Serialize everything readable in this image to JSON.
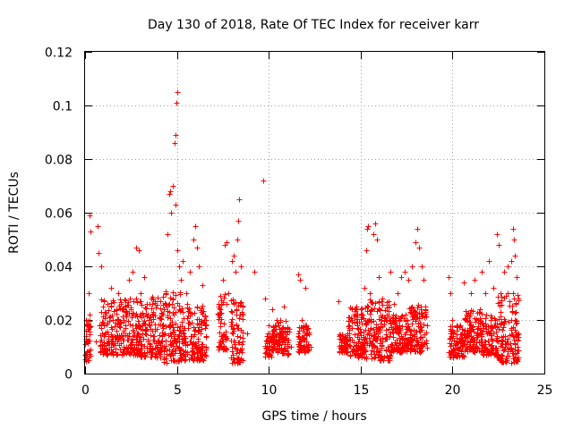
{
  "chart_data": {
    "type": "scatter",
    "title": "Day 130 of 2018, Rate Of TEC Index for receiver karr",
    "xlabel": "GPS time / hours",
    "ylabel": "ROTI / TECUs",
    "xlim": [
      0,
      25
    ],
    "ylim": [
      0,
      0.12
    ],
    "x_ticks": [
      0,
      5,
      10,
      15,
      20,
      25
    ],
    "x_tick_labels": [
      "0",
      "5",
      "10",
      "15",
      "20",
      "25"
    ],
    "y_ticks": [
      0,
      0.02,
      0.04,
      0.06,
      0.08,
      0.1,
      0.12
    ],
    "y_tick_labels": [
      "0",
      "0.02",
      "0.04",
      "0.06",
      "0.08",
      "0.1",
      "0.12"
    ],
    "grid": true,
    "marker": "+",
    "color": "#ff0000",
    "series": [
      {
        "name": "ROTI",
        "points": [
          [
            0.1,
            0.018
          ],
          [
            0.15,
            0.012
          ],
          [
            0.2,
            0.03
          ],
          [
            0.25,
            0.059
          ],
          [
            0.3,
            0.053
          ],
          [
            0.12,
            0.008
          ],
          [
            0.22,
            0.022
          ],
          [
            0.7,
            0.055
          ],
          [
            0.75,
            0.045
          ],
          [
            0.9,
            0.04
          ],
          [
            0.6,
            0.012
          ],
          [
            0.8,
            0.018
          ],
          [
            1.0,
            0.014
          ],
          [
            1.2,
            0.026
          ],
          [
            1.4,
            0.032
          ],
          [
            1.5,
            0.02
          ],
          [
            1.7,
            0.016
          ],
          [
            1.8,
            0.03
          ],
          [
            2.0,
            0.024
          ],
          [
            2.2,
            0.018
          ],
          [
            2.4,
            0.035
          ],
          [
            2.6,
            0.038
          ],
          [
            2.8,
            0.047
          ],
          [
            2.9,
            0.046
          ],
          [
            3.0,
            0.03
          ],
          [
            3.2,
            0.036
          ],
          [
            3.4,
            0.022
          ],
          [
            3.6,
            0.028
          ],
          [
            3.8,
            0.016
          ],
          [
            4.0,
            0.012
          ],
          [
            4.2,
            0.014
          ],
          [
            4.4,
            0.03
          ],
          [
            4.5,
            0.052
          ],
          [
            4.6,
            0.067
          ],
          [
            4.65,
            0.068
          ],
          [
            4.7,
            0.06
          ],
          [
            4.8,
            0.07
          ],
          [
            4.85,
            0.086
          ],
          [
            4.9,
            0.089
          ],
          [
            4.95,
            0.101
          ],
          [
            5.0,
            0.105
          ],
          [
            4.9,
            0.063
          ],
          [
            5.0,
            0.046
          ],
          [
            5.1,
            0.04
          ],
          [
            5.2,
            0.035
          ],
          [
            5.3,
            0.042
          ],
          [
            5.5,
            0.03
          ],
          [
            5.7,
            0.038
          ],
          [
            5.9,
            0.05
          ],
          [
            6.0,
            0.055
          ],
          [
            6.1,
            0.047
          ],
          [
            6.2,
            0.04
          ],
          [
            6.4,
            0.033
          ],
          [
            6.5,
            0.02
          ],
          [
            6.6,
            0.014
          ],
          [
            7.3,
            0.025
          ],
          [
            7.5,
            0.035
          ],
          [
            7.6,
            0.048
          ],
          [
            7.7,
            0.049
          ],
          [
            7.8,
            0.03
          ],
          [
            8.0,
            0.042
          ],
          [
            8.1,
            0.044
          ],
          [
            8.2,
            0.038
          ],
          [
            8.3,
            0.05
          ],
          [
            8.35,
            0.057
          ],
          [
            8.4,
            0.065
          ],
          [
            8.5,
            0.04
          ],
          [
            8.6,
            0.025
          ],
          [
            8.8,
            0.015
          ],
          [
            9.2,
            0.038
          ],
          [
            9.7,
            0.072
          ],
          [
            9.8,
            0.028
          ],
          [
            10.0,
            0.018
          ],
          [
            10.2,
            0.024
          ],
          [
            10.4,
            0.012
          ],
          [
            10.6,
            0.02
          ],
          [
            10.8,
            0.025
          ],
          [
            11.0,
            0.016
          ],
          [
            11.2,
            0.01
          ],
          [
            11.6,
            0.037
          ],
          [
            11.7,
            0.035
          ],
          [
            11.8,
            0.02
          ],
          [
            12.0,
            0.032
          ],
          [
            12.1,
            0.015
          ],
          [
            12.3,
            0.01
          ],
          [
            13.8,
            0.027
          ],
          [
            14.0,
            0.014
          ],
          [
            14.2,
            0.01
          ],
          [
            14.6,
            0.022
          ],
          [
            14.8,
            0.018
          ],
          [
            15.0,
            0.024
          ],
          [
            15.2,
            0.032
          ],
          [
            15.3,
            0.046
          ],
          [
            15.35,
            0.054
          ],
          [
            15.4,
            0.055
          ],
          [
            15.5,
            0.03
          ],
          [
            15.7,
            0.052
          ],
          [
            15.8,
            0.056
          ],
          [
            15.9,
            0.05
          ],
          [
            16.0,
            0.036
          ],
          [
            16.2,
            0.028
          ],
          [
            16.4,
            0.02
          ],
          [
            16.6,
            0.038
          ],
          [
            16.8,
            0.026
          ],
          [
            17.0,
            0.03
          ],
          [
            17.2,
            0.036
          ],
          [
            17.4,
            0.038
          ],
          [
            17.6,
            0.035
          ],
          [
            17.8,
            0.04
          ],
          [
            18.0,
            0.049
          ],
          [
            18.1,
            0.054
          ],
          [
            18.2,
            0.047
          ],
          [
            18.3,
            0.04
          ],
          [
            18.4,
            0.035
          ],
          [
            18.5,
            0.024
          ],
          [
            18.6,
            0.018
          ],
          [
            19.8,
            0.036
          ],
          [
            19.9,
            0.03
          ],
          [
            20.0,
            0.02
          ],
          [
            20.2,
            0.016
          ],
          [
            20.4,
            0.012
          ],
          [
            20.6,
            0.034
          ],
          [
            20.8,
            0.022
          ],
          [
            21.0,
            0.03
          ],
          [
            21.2,
            0.035
          ],
          [
            21.4,
            0.02
          ],
          [
            21.6,
            0.038
          ],
          [
            21.8,
            0.03
          ],
          [
            22.0,
            0.042
          ],
          [
            22.2,
            0.032
          ],
          [
            22.4,
            0.052
          ],
          [
            22.5,
            0.048
          ],
          [
            22.6,
            0.03
          ],
          [
            22.8,
            0.038
          ],
          [
            23.0,
            0.04
          ],
          [
            23.2,
            0.042
          ],
          [
            23.3,
            0.054
          ],
          [
            23.35,
            0.05
          ],
          [
            23.4,
            0.044
          ],
          [
            23.5,
            0.036
          ],
          [
            23.6,
            0.028
          ]
        ],
        "dense_bands": [
          {
            "x": [
              0.0,
              0.3
            ],
            "y": [
              0.004,
              0.02
            ]
          },
          {
            "x": [
              0.8,
              3.0
            ],
            "y": [
              0.007,
              0.028
            ]
          },
          {
            "x": [
              3.0,
              4.2
            ],
            "y": [
              0.006,
              0.03
            ]
          },
          {
            "x": [
              4.2,
              5.2
            ],
            "y": [
              0.004,
              0.032
            ]
          },
          {
            "x": [
              5.2,
              6.6
            ],
            "y": [
              0.005,
              0.026
            ]
          },
          {
            "x": [
              7.2,
              7.7
            ],
            "y": [
              0.009,
              0.03
            ]
          },
          {
            "x": [
              7.9,
              8.6
            ],
            "y": [
              0.004,
              0.028
            ]
          },
          {
            "x": [
              9.8,
              10.2
            ],
            "y": [
              0.006,
              0.016
            ]
          },
          {
            "x": [
              10.2,
              10.7
            ],
            "y": [
              0.008,
              0.02
            ]
          },
          {
            "x": [
              10.7,
              11.1
            ],
            "y": [
              0.007,
              0.02
            ]
          },
          {
            "x": [
              11.6,
              12.2
            ],
            "y": [
              0.008,
              0.018
            ]
          },
          {
            "x": [
              13.8,
              14.3
            ],
            "y": [
              0.008,
              0.015
            ]
          },
          {
            "x": [
              14.3,
              15.2
            ],
            "y": [
              0.006,
              0.025
            ]
          },
          {
            "x": [
              15.2,
              16.6
            ],
            "y": [
              0.005,
              0.028
            ]
          },
          {
            "x": [
              16.6,
              17.6
            ],
            "y": [
              0.008,
              0.022
            ]
          },
          {
            "x": [
              17.6,
              18.6
            ],
            "y": [
              0.008,
              0.026
            ]
          },
          {
            "x": [
              19.8,
              20.6
            ],
            "y": [
              0.006,
              0.018
            ]
          },
          {
            "x": [
              20.6,
              21.6
            ],
            "y": [
              0.008,
              0.024
            ]
          },
          {
            "x": [
              21.6,
              22.4
            ],
            "y": [
              0.007,
              0.022
            ]
          },
          {
            "x": [
              22.4,
              23.6
            ],
            "y": [
              0.004,
              0.03
            ]
          }
        ]
      }
    ]
  }
}
